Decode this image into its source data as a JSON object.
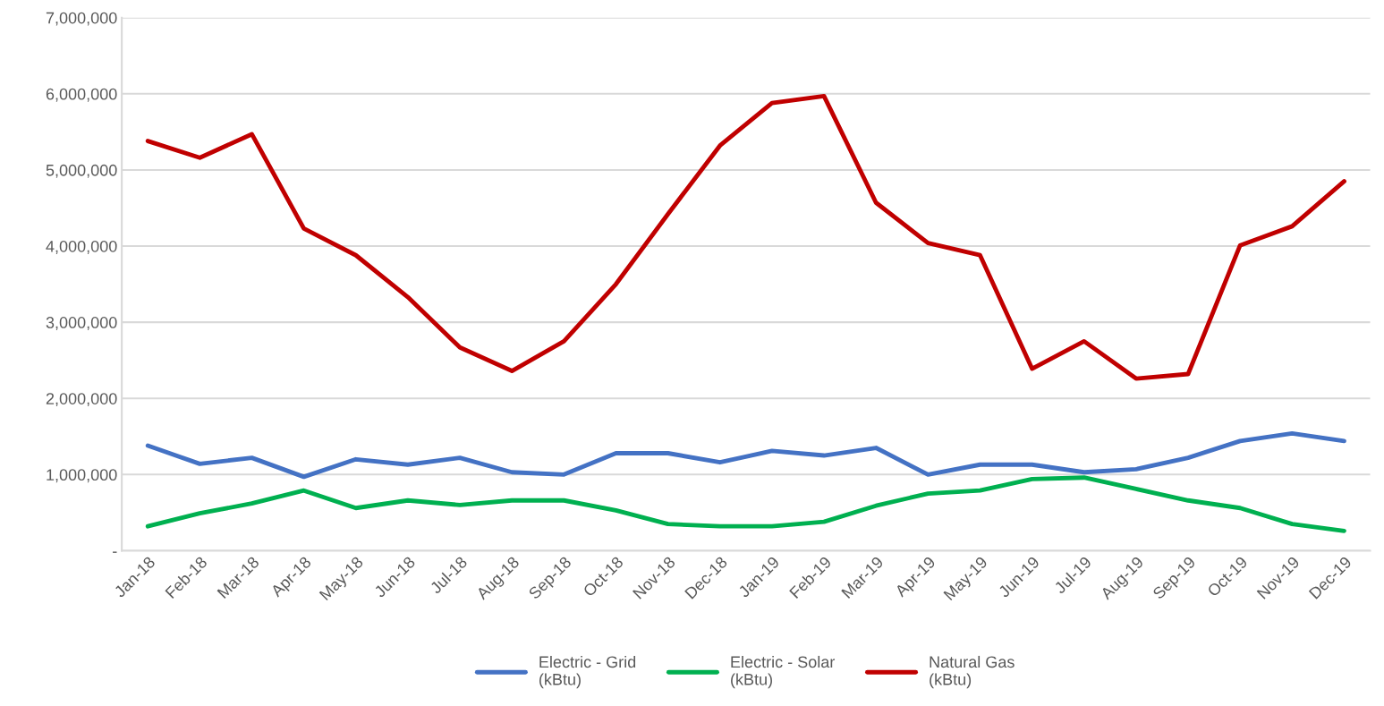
{
  "chart_data": {
    "type": "line",
    "categories": [
      "Jan-18",
      "Feb-18",
      "Mar-18",
      "Apr-18",
      "May-18",
      "Jun-18",
      "Jul-18",
      "Aug-18",
      "Sep-18",
      "Oct-18",
      "Nov-18",
      "Dec-18",
      "Jan-19",
      "Feb-19",
      "Mar-19",
      "Apr-19",
      "May-19",
      "Jun-19",
      "Jul-19",
      "Aug-19",
      "Sep-19",
      "Oct-19",
      "Nov-19",
      "Dec-19"
    ],
    "series": [
      {
        "name": "Electric - Grid\n(kBtu)",
        "color": "#4472c4",
        "values": [
          1380000,
          1140000,
          1220000,
          970000,
          1200000,
          1130000,
          1220000,
          1030000,
          1000000,
          1280000,
          1280000,
          1160000,
          1310000,
          1250000,
          1350000,
          1000000,
          1130000,
          1130000,
          1030000,
          1070000,
          1220000,
          1440000,
          1540000,
          1440000
        ]
      },
      {
        "name": "Electric - Solar\n(kBtu)",
        "color": "#00b050",
        "values": [
          320000,
          490000,
          620000,
          790000,
          560000,
          660000,
          600000,
          660000,
          660000,
          530000,
          350000,
          320000,
          320000,
          380000,
          590000,
          750000,
          790000,
          940000,
          960000,
          810000,
          660000,
          560000,
          350000,
          260000
        ]
      },
      {
        "name": "Natural Gas\n(kBtu)",
        "color": "#c00000",
        "values": [
          5380000,
          5160000,
          5470000,
          4230000,
          3880000,
          3330000,
          2670000,
          2360000,
          2750000,
          3500000,
          4420000,
          5320000,
          5880000,
          5970000,
          4570000,
          4040000,
          3880000,
          2390000,
          2750000,
          2260000,
          2320000,
          4010000,
          4260000,
          4850000
        ]
      }
    ],
    "ylim": [
      0,
      7000000
    ],
    "yticks": [
      {
        "value": 0,
        "label": "-"
      },
      {
        "value": 1000000,
        "label": "1,000,000"
      },
      {
        "value": 2000000,
        "label": "2,000,000"
      },
      {
        "value": 3000000,
        "label": "3,000,000"
      },
      {
        "value": 4000000,
        "label": "4,000,000"
      },
      {
        "value": 5000000,
        "label": "5,000,000"
      },
      {
        "value": 6000000,
        "label": "6,000,000"
      },
      {
        "value": 7000000,
        "label": "7,000,000"
      }
    ],
    "grid": "y",
    "legend": "bottom",
    "marker": "none",
    "line_style": "solid"
  }
}
